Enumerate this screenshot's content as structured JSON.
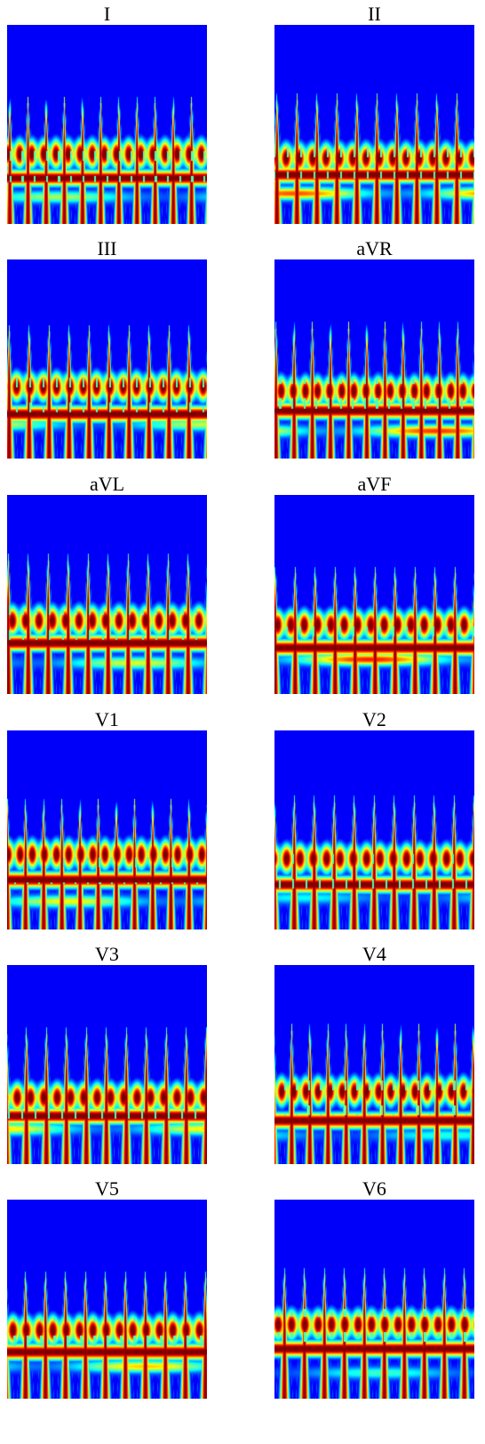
{
  "panels": [
    {
      "title": "I"
    },
    {
      "title": "II"
    },
    {
      "title": "III"
    },
    {
      "title": "aVR"
    },
    {
      "title": "aVL"
    },
    {
      "title": "aVF"
    },
    {
      "title": "V1"
    },
    {
      "title": "V2"
    },
    {
      "title": "V3"
    },
    {
      "title": "V4"
    },
    {
      "title": "V5"
    },
    {
      "title": "V6"
    }
  ],
  "colormap": "jet",
  "colors": {
    "background": "#ffffff",
    "low": "#00007f",
    "high": "#7f0000"
  }
}
